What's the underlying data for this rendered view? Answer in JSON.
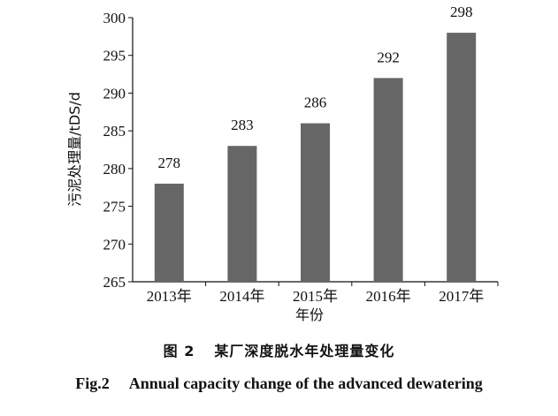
{
  "chart_data": {
    "type": "bar",
    "categories": [
      "2013年",
      "2014年",
      "2015年",
      "2016年",
      "2017年"
    ],
    "values": [
      278,
      283,
      286,
      292,
      298
    ],
    "data_labels": [
      "278",
      "283",
      "286",
      "292",
      "298"
    ],
    "xlabel": "年份",
    "ylabel": "污泥处理量/tDS/d",
    "ylim": [
      265,
      300
    ],
    "yticks": [
      "265",
      "270",
      "275",
      "280",
      "285",
      "290",
      "295",
      "300"
    ],
    "grid": false,
    "bar_color": "#666666"
  },
  "caption": {
    "cn_number": "图 2",
    "cn_title": "某厂深度脱水年处理量变化",
    "en_number": "Fig.2",
    "en_title": "Annual capacity change of the advanced dewatering"
  }
}
